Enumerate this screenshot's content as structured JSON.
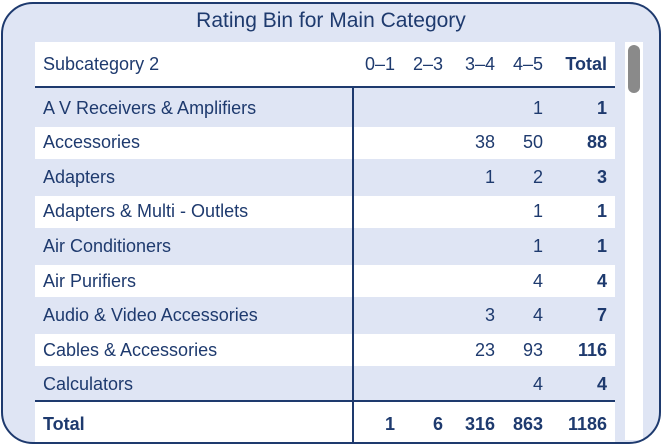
{
  "title": "Rating Bin for Main Category",
  "header": {
    "name": "Subcategory 2",
    "c0": "0–1",
    "c1": "2–3",
    "c2": "3–4",
    "c3": "4–5",
    "c4": "Total"
  },
  "rows": [
    {
      "name": "A V Receivers & Amplifiers",
      "c0": "",
      "c1": "",
      "c2": "",
      "c3": "1",
      "c4": "1"
    },
    {
      "name": "Accessories",
      "c0": "",
      "c1": "",
      "c2": "38",
      "c3": "50",
      "c4": "88"
    },
    {
      "name": "Adapters",
      "c0": "",
      "c1": "",
      "c2": "1",
      "c3": "2",
      "c4": "3"
    },
    {
      "name": "Adapters & Multi - Outlets",
      "c0": "",
      "c1": "",
      "c2": "",
      "c3": "1",
      "c4": "1"
    },
    {
      "name": "Air Conditioners",
      "c0": "",
      "c1": "",
      "c2": "",
      "c3": "1",
      "c4": "1"
    },
    {
      "name": "Air Purifiers",
      "c0": "",
      "c1": "",
      "c2": "",
      "c3": "4",
      "c4": "4"
    },
    {
      "name": "Audio & Video Accessories",
      "c0": "",
      "c1": "",
      "c2": "3",
      "c3": "4",
      "c4": "7"
    },
    {
      "name": "Cables & Accessories",
      "c0": "",
      "c1": "",
      "c2": "23",
      "c3": "93",
      "c4": "116"
    },
    {
      "name": "Calculators",
      "c0": "",
      "c1": "",
      "c2": "",
      "c3": "4",
      "c4": "4"
    }
  ],
  "total": {
    "name": "Total",
    "c0": "1",
    "c1": "6",
    "c2": "316",
    "c3": "863",
    "c4": "1186"
  },
  "colors": {
    "frame": "#1e3a6e",
    "band": "#dfe5f4",
    "scrollbar_thumb": "#8a8a8a"
  }
}
